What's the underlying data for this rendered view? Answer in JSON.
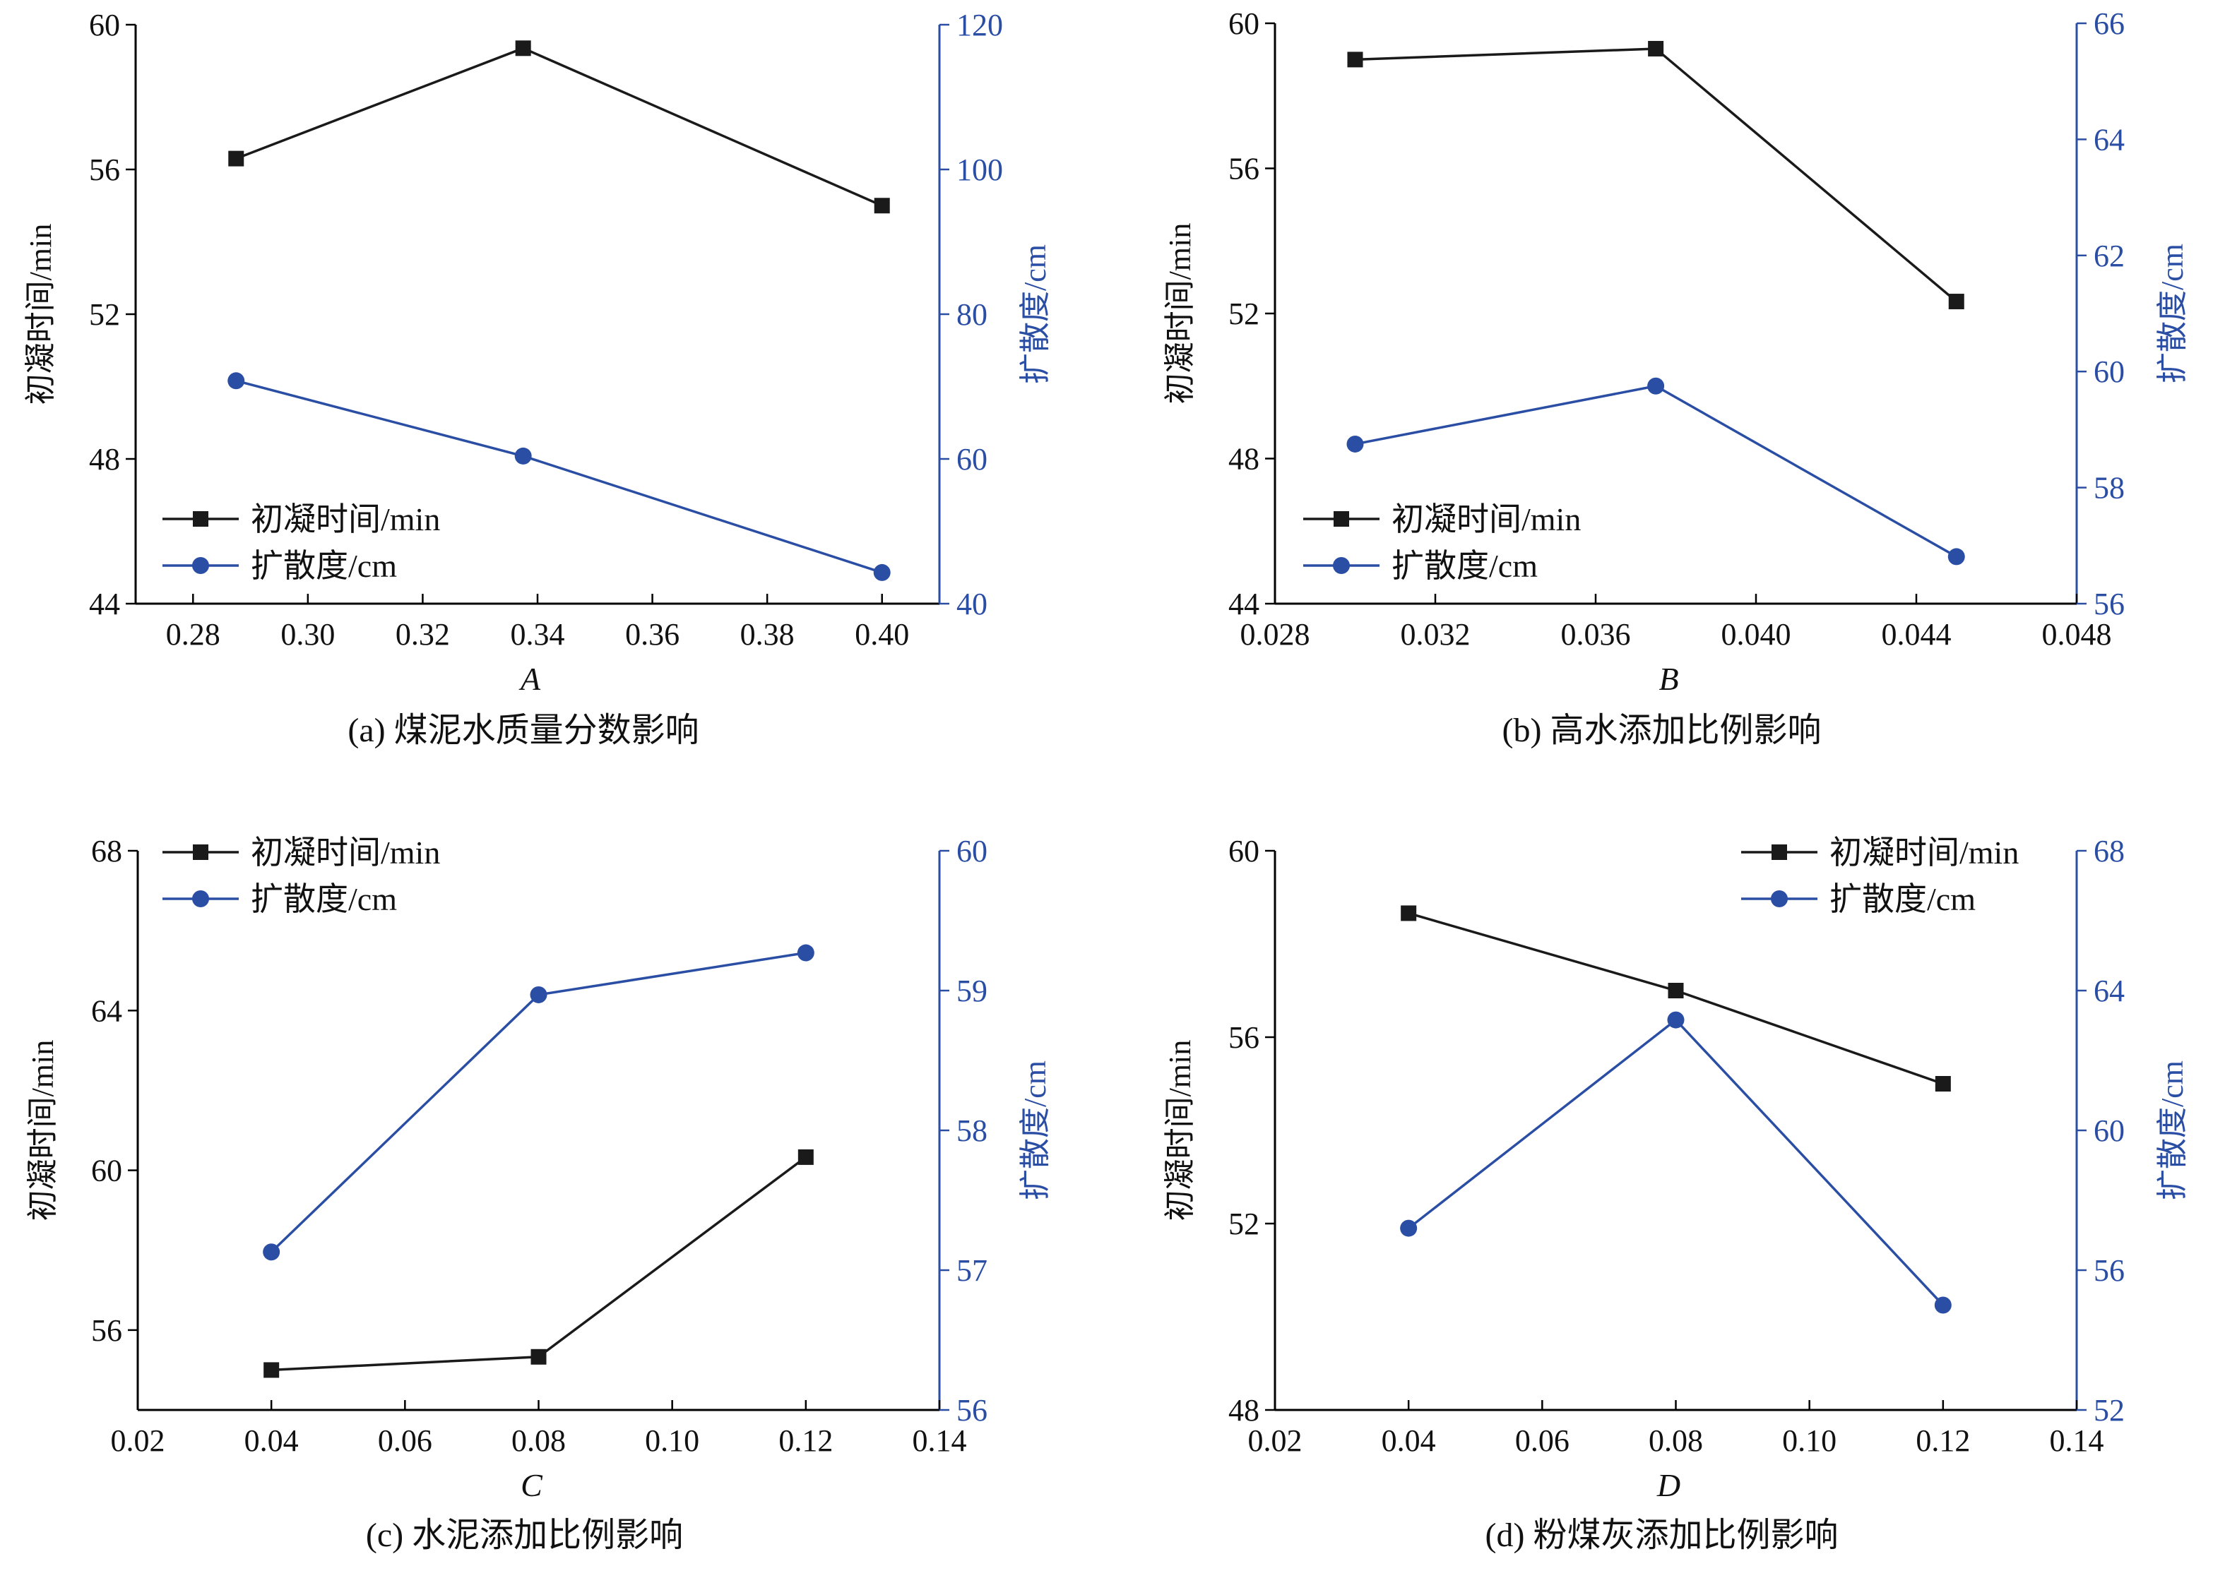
{
  "colors": {
    "black_series": "#1a1a1a",
    "blue_series": "#2b4ea5",
    "right_axis": "#2b4ea5"
  },
  "chart_data": [
    {
      "type": "line",
      "panel": "a",
      "caption": "(a) 煤泥水质量分数影响",
      "xlabel": "A",
      "ylabel_left": "初凝时间/min",
      "ylabel_right": "扩散度/cm",
      "xlim": [
        0.27,
        0.41
      ],
      "xticks": [
        0.28,
        0.3,
        0.32,
        0.34,
        0.36,
        0.38,
        0.4
      ],
      "xtick_labels": [
        "0.28",
        "0.30",
        "0.32",
        "0.34",
        "0.36",
        "0.38",
        "0.40"
      ],
      "ylim_left": [
        44,
        60
      ],
      "yticks_left": [
        44,
        48,
        52,
        56,
        60
      ],
      "ylim_right": [
        40,
        120
      ],
      "yticks_right": [
        40,
        60,
        80,
        100,
        120
      ],
      "x": [
        0.2875,
        0.3375,
        0.4
      ],
      "series": [
        {
          "name": "初凝时间/min",
          "axis": "left",
          "marker": "square",
          "values": [
            56.3,
            59.35,
            55.0
          ]
        },
        {
          "name": "扩散度/cm",
          "axis": "right",
          "marker": "circle",
          "values": [
            70.8,
            60.4,
            44.3
          ]
        }
      ],
      "legend": "bottom-left",
      "grid": false
    },
    {
      "type": "line",
      "panel": "b",
      "caption": "(b) 高水添加比例影响",
      "xlabel": "B",
      "ylabel_left": "初凝时间/min",
      "ylabel_right": "扩散度/cm",
      "xlim": [
        0.028,
        0.048
      ],
      "xticks": [
        0.028,
        0.032,
        0.036,
        0.04,
        0.044,
        0.048
      ],
      "xtick_labels": [
        "0.028",
        "0.032",
        "0.036",
        "0.040",
        "0.044",
        "0.048"
      ],
      "ylim_left": [
        44,
        60
      ],
      "yticks_left": [
        44,
        48,
        52,
        56,
        60
      ],
      "ylim_right": [
        56,
        66
      ],
      "yticks_right": [
        56,
        58,
        60,
        62,
        64,
        66
      ],
      "x": [
        0.03,
        0.0375,
        0.045
      ],
      "series": [
        {
          "name": "初凝时间/min",
          "axis": "left",
          "marker": "square",
          "values": [
            59.0,
            59.3,
            52.33
          ]
        },
        {
          "name": "扩散度/cm",
          "axis": "right",
          "marker": "circle",
          "values": [
            58.75,
            59.75,
            56.81
          ]
        }
      ],
      "legend": "bottom-left",
      "grid": false
    },
    {
      "type": "line",
      "panel": "c",
      "caption": "(c) 水泥添加比例影响",
      "xlabel": "C",
      "ylabel_left": "初凝时间/min",
      "ylabel_right": "扩散度/cm",
      "xlim": [
        0.02,
        0.14
      ],
      "xticks": [
        0.02,
        0.04,
        0.06,
        0.08,
        0.1,
        0.12,
        0.14
      ],
      "xtick_labels": [
        "0.02",
        "0.04",
        "0.06",
        "0.08",
        "0.10",
        "0.12",
        "0.14"
      ],
      "ylim_left": [
        54,
        68
      ],
      "yticks_left": [
        56,
        60,
        64,
        68
      ],
      "ylim_right": [
        56,
        60
      ],
      "yticks_right": [
        56,
        57,
        58,
        59,
        60
      ],
      "x": [
        0.04,
        0.08,
        0.12
      ],
      "series": [
        {
          "name": "初凝时间/min",
          "axis": "left",
          "marker": "square",
          "values": [
            55.0,
            55.33,
            60.33
          ]
        },
        {
          "name": "扩散度/cm",
          "axis": "right",
          "marker": "circle",
          "values": [
            57.13,
            58.97,
            59.27
          ]
        }
      ],
      "legend": "top-left",
      "grid": false
    },
    {
      "type": "line",
      "panel": "d",
      "caption": "(d) 粉煤灰添加比例影响",
      "xlabel": "D",
      "ylabel_left": "初凝时间/min",
      "ylabel_right": "扩散度/cm",
      "xlim": [
        0.02,
        0.14
      ],
      "xticks": [
        0.02,
        0.04,
        0.06,
        0.08,
        0.1,
        0.12,
        0.14
      ],
      "xtick_labels": [
        "0.02",
        "0.04",
        "0.06",
        "0.08",
        "0.10",
        "0.12",
        "0.14"
      ],
      "ylim_left": [
        48,
        60
      ],
      "yticks_left": [
        48,
        52,
        56,
        60
      ],
      "ylim_right": [
        52,
        68
      ],
      "yticks_right": [
        52,
        56,
        60,
        64,
        68
      ],
      "x": [
        0.04,
        0.08,
        0.12
      ],
      "series": [
        {
          "name": "初凝时间/min",
          "axis": "left",
          "marker": "square",
          "values": [
            58.66,
            57.0,
            55.0
          ]
        },
        {
          "name": "扩散度/cm",
          "axis": "right",
          "marker": "circle",
          "values": [
            57.2,
            63.16,
            55.0
          ]
        }
      ],
      "legend": "top-right",
      "grid": false
    }
  ]
}
